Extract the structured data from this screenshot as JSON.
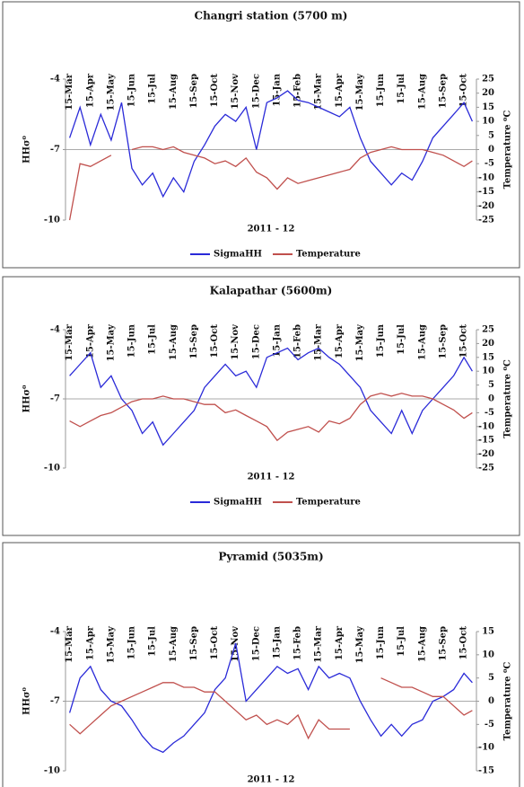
{
  "chart_data": [
    {
      "type": "line",
      "title": "Changri station (5700 m)",
      "xlabel": "2011 - 12",
      "ylabel": "HHσ⁰",
      "y2label": "Temperature ⁰C",
      "legend": "bottom",
      "x": [
        0,
        0.5,
        1,
        1.5,
        2,
        2.5,
        3,
        3.5,
        4,
        4.5,
        5,
        5.5,
        6,
        6.5,
        7,
        7.5,
        8,
        8.5,
        9,
        9.5,
        10,
        10.5,
        11,
        11.5,
        12,
        12.5,
        13,
        13.5,
        14,
        14.5,
        15,
        15.5,
        16,
        16.5,
        17,
        17.5,
        18,
        18.5,
        19,
        19.4
      ],
      "xlim": [
        -0.2,
        19.6
      ],
      "xticks": [
        {
          "value": 0,
          "label": "15-Mar"
        },
        {
          "value": 1,
          "label": "15-Apr"
        },
        {
          "value": 2,
          "label": "15-May"
        },
        {
          "value": 3,
          "label": "15-Jun"
        },
        {
          "value": 4,
          "label": "15-Jul"
        },
        {
          "value": 5,
          "label": "15-Aug"
        },
        {
          "value": 6,
          "label": "15-Sep"
        },
        {
          "value": 7,
          "label": "15-Oct"
        },
        {
          "value": 8,
          "label": "15-Nov"
        },
        {
          "value": 9,
          "label": "15-Dec"
        },
        {
          "value": 10,
          "label": "15-Jan"
        },
        {
          "value": 11,
          "label": "15-Feb"
        },
        {
          "value": 12,
          "label": "15-Mar"
        },
        {
          "value": 13,
          "label": "15-Apr"
        },
        {
          "value": 14,
          "label": "15-May"
        },
        {
          "value": 15,
          "label": "15-Jun"
        },
        {
          "value": 16,
          "label": "15-Jul"
        },
        {
          "value": 17,
          "label": "15-Aug"
        },
        {
          "value": 18,
          "label": "15-Sep"
        },
        {
          "value": 19,
          "label": "15-Oct"
        }
      ],
      "ylim": [
        -10,
        -4
      ],
      "yticks": [
        -10,
        -7,
        -4
      ],
      "y2lim": [
        -25,
        25
      ],
      "y2ticks": [
        -25,
        -20,
        -15,
        -10,
        -5,
        0,
        5,
        10,
        15,
        20,
        25
      ],
      "series": [
        {
          "name": "SigmaHH",
          "color": "#2a2ad8",
          "values": [
            -6.5,
            -5.2,
            -6.8,
            -5.5,
            -6.6,
            -5.0,
            -7.8,
            -8.5,
            -8.0,
            -9.0,
            -8.2,
            -8.8,
            -7.5,
            -6.8,
            -6.0,
            -5.5,
            -5.8,
            -5.2,
            -7.0,
            -5.0,
            -4.8,
            -4.5,
            -4.9,
            -5.0,
            -5.2,
            -5.4,
            -5.6,
            -5.2,
            -6.5,
            -7.5,
            -8.0,
            -8.5,
            -8.0,
            -8.3,
            -7.5,
            -6.5,
            -6.0,
            -5.5,
            -5.0,
            -5.8
          ]
        },
        {
          "name": "Temperature",
          "color": "#c0504d",
          "axis": "y2",
          "values": [
            -25,
            -5,
            -6,
            -4,
            -2,
            null,
            0,
            1,
            1,
            0,
            1,
            -1,
            -2,
            -3,
            -5,
            -4,
            -6,
            -3,
            -8,
            -10,
            -14,
            -10,
            -12,
            -11,
            -10,
            -9,
            -8,
            -7,
            -3,
            -1,
            0,
            1,
            0,
            0,
            0,
            -1,
            -2,
            -4,
            -6,
            -4
          ]
        }
      ]
    },
    {
      "type": "line",
      "title": "Kalapathar (5600m)",
      "xlabel": "2011 - 12",
      "ylabel": "HHσ⁰",
      "y2label": "Temperature ⁰C",
      "legend": "bottom",
      "x": [
        0,
        0.5,
        1,
        1.5,
        2,
        2.5,
        3,
        3.5,
        4,
        4.5,
        5,
        5.5,
        6,
        6.5,
        7,
        7.5,
        8,
        8.5,
        9,
        9.5,
        10,
        10.5,
        11,
        11.5,
        12,
        12.5,
        13,
        13.5,
        14,
        14.5,
        15,
        15.5,
        16,
        16.5,
        17,
        17.5,
        18,
        18.5,
        19,
        19.4
      ],
      "xlim": [
        -0.2,
        19.6
      ],
      "xticks": [
        {
          "value": 0,
          "label": "15-Mar"
        },
        {
          "value": 1,
          "label": "15-Apr"
        },
        {
          "value": 2,
          "label": "15-May"
        },
        {
          "value": 3,
          "label": "15-Jun"
        },
        {
          "value": 4,
          "label": "15-Jul"
        },
        {
          "value": 5,
          "label": "15-Aug"
        },
        {
          "value": 6,
          "label": "15-Sep"
        },
        {
          "value": 7,
          "label": "15-Oct"
        },
        {
          "value": 8,
          "label": "15-Nov"
        },
        {
          "value": 9,
          "label": "15-Dec"
        },
        {
          "value": 10,
          "label": "15-Jan"
        },
        {
          "value": 11,
          "label": "15-Feb"
        },
        {
          "value": 12,
          "label": "15-Mar"
        },
        {
          "value": 13,
          "label": "15-Apr"
        },
        {
          "value": 14,
          "label": "15-May"
        },
        {
          "value": 15,
          "label": "15-Jun"
        },
        {
          "value": 16,
          "label": "15-Jul"
        },
        {
          "value": 17,
          "label": "15-Aug"
        },
        {
          "value": 18,
          "label": "15-Sep"
        },
        {
          "value": 19,
          "label": "15-Oct"
        }
      ],
      "ylim": [
        -10,
        -4
      ],
      "yticks": [
        -10,
        -7,
        -4
      ],
      "y2lim": [
        -25,
        25
      ],
      "y2ticks": [
        -25,
        -20,
        -15,
        -10,
        -5,
        0,
        5,
        10,
        15,
        20,
        25
      ],
      "series": [
        {
          "name": "SigmaHH",
          "color": "#2a2ad8",
          "values": [
            -6.0,
            -5.5,
            -5.0,
            -6.5,
            -6.0,
            -7.0,
            -7.5,
            -8.5,
            -8.0,
            -9.0,
            -8.5,
            -8.0,
            -7.5,
            -6.5,
            -6.0,
            -5.5,
            -6.0,
            -5.8,
            -6.5,
            -5.2,
            -5.0,
            -4.8,
            -5.3,
            -5.0,
            -4.8,
            -5.2,
            -5.5,
            -6.0,
            -6.5,
            -7.5,
            -8.0,
            -8.5,
            -7.5,
            -8.5,
            -7.5,
            -7.0,
            -6.5,
            -6.0,
            -5.2,
            -5.8
          ]
        },
        {
          "name": "Temperature",
          "color": "#c0504d",
          "axis": "y2",
          "values": [
            -8,
            -10,
            -8,
            -6,
            -5,
            -3,
            -1,
            0,
            0,
            1,
            0,
            0,
            -1,
            -2,
            -2,
            -5,
            -4,
            -6,
            -8,
            -10,
            -15,
            -12,
            -11,
            -10,
            -12,
            -8,
            -9,
            -7,
            -2,
            1,
            2,
            1,
            2,
            1,
            1,
            0,
            -2,
            -4,
            -7,
            -5
          ]
        }
      ]
    },
    {
      "type": "line",
      "title": "Pyramid (5035m)",
      "xlabel": "2011 - 12",
      "ylabel": "HHσ⁰",
      "y2label": "Temperature ⁰C",
      "x": [
        0,
        0.5,
        1,
        1.5,
        2,
        2.5,
        3,
        3.5,
        4,
        4.5,
        5,
        5.5,
        6,
        6.5,
        7,
        7.5,
        8,
        8.5,
        9,
        9.5,
        10,
        10.5,
        11,
        11.5,
        12,
        12.5,
        13,
        13.5,
        14,
        14.5,
        15,
        15.5,
        16,
        16.5,
        17,
        17.5,
        18,
        18.5,
        19,
        19.4
      ],
      "xlim": [
        -0.2,
        19.6
      ],
      "xticks": [
        {
          "value": 0,
          "label": "15-Mar"
        },
        {
          "value": 1,
          "label": "15-Apr"
        },
        {
          "value": 2,
          "label": "15-May"
        },
        {
          "value": 3,
          "label": "15-Jun"
        },
        {
          "value": 4,
          "label": "15-Jul"
        },
        {
          "value": 5,
          "label": "15-Aug"
        },
        {
          "value": 6,
          "label": "15-Sep"
        },
        {
          "value": 7,
          "label": "15-Oct"
        },
        {
          "value": 8,
          "label": "15-Nov"
        },
        {
          "value": 9,
          "label": "15-Dec"
        },
        {
          "value": 10,
          "label": "15-Jan"
        },
        {
          "value": 11,
          "label": "15-Feb"
        },
        {
          "value": 12,
          "label": "15-Mar"
        },
        {
          "value": 13,
          "label": "15-Apr"
        },
        {
          "value": 14,
          "label": "15-May"
        },
        {
          "value": 15,
          "label": "15-Jun"
        },
        {
          "value": 16,
          "label": "15-Jul"
        },
        {
          "value": 17,
          "label": "15-Aug"
        },
        {
          "value": 18,
          "label": "15-Sep"
        },
        {
          "value": 19,
          "label": "15-Oct"
        }
      ],
      "ylim": [
        -10,
        -4
      ],
      "yticks": [
        -10,
        -7,
        -4
      ],
      "y2lim": [
        -15,
        15
      ],
      "y2ticks": [
        -15,
        -10,
        -5,
        0,
        5,
        10,
        15
      ],
      "series": [
        {
          "name": "SigmaHH",
          "color": "#2a2ad8",
          "values": [
            -7.5,
            -6.0,
            -5.5,
            -6.5,
            -7.0,
            -7.2,
            -7.8,
            -8.5,
            -9.0,
            -9.2,
            -8.8,
            -8.5,
            -8.0,
            -7.5,
            -6.5,
            -6.0,
            -4.5,
            -7.0,
            -6.5,
            -6.0,
            -5.5,
            -5.8,
            -5.6,
            -6.5,
            -5.5,
            -6.0,
            -5.8,
            -6.0,
            -7.0,
            -7.8,
            -8.5,
            -8.0,
            -8.5,
            -8.0,
            -7.8,
            -7.0,
            -6.8,
            -6.5,
            -5.8,
            -6.2
          ]
        },
        {
          "name": "Temperature",
          "color": "#c0504d",
          "axis": "y2",
          "values": [
            -5,
            -7,
            -5,
            -3,
            -1,
            0,
            1,
            2,
            3,
            4,
            4,
            3,
            3,
            2,
            2,
            0,
            -2,
            -4,
            -3,
            -5,
            -4,
            -5,
            -3,
            -8,
            -4,
            -6,
            -6,
            -6,
            null,
            null,
            5,
            4,
            3,
            3,
            2,
            1,
            1,
            -1,
            -3,
            -2
          ]
        }
      ]
    }
  ]
}
